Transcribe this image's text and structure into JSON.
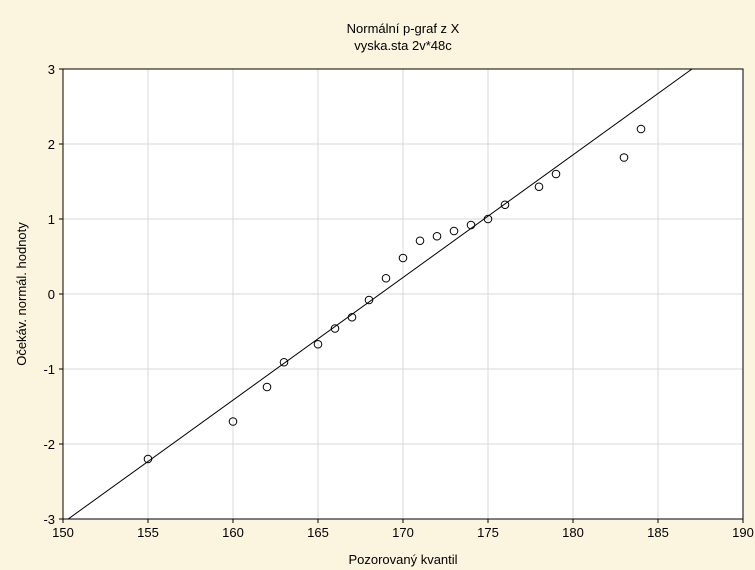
{
  "chart_data": {
    "type": "scatter",
    "title": "Normální p-graf z X",
    "subtitle": "vyska.sta 2v*48c",
    "xlabel": "Pozorovaný kvantil",
    "ylabel": "Očekáv. normál. hodnoty",
    "xlim": [
      150,
      190
    ],
    "ylim": [
      -3,
      3
    ],
    "xticks": [
      150,
      155,
      160,
      165,
      170,
      175,
      180,
      185,
      190
    ],
    "yticks": [
      -3,
      -2,
      -1,
      0,
      1,
      2,
      3
    ],
    "xtick_labels": [
      "150",
      "155",
      "160",
      "165",
      "170",
      "175",
      "180",
      "185",
      "190"
    ],
    "ytick_labels": [
      "-3",
      "-2",
      "-1",
      "0",
      "1",
      "2",
      "3"
    ],
    "grid": true,
    "points": [
      {
        "x": 155,
        "y": -2.2
      },
      {
        "x": 160,
        "y": -1.7
      },
      {
        "x": 162,
        "y": -1.24
      },
      {
        "x": 163,
        "y": -0.91
      },
      {
        "x": 165,
        "y": -0.67
      },
      {
        "x": 166,
        "y": -0.46
      },
      {
        "x": 167,
        "y": -0.31
      },
      {
        "x": 168,
        "y": -0.08
      },
      {
        "x": 169,
        "y": 0.21
      },
      {
        "x": 170,
        "y": 0.48
      },
      {
        "x": 171,
        "y": 0.71
      },
      {
        "x": 172,
        "y": 0.77
      },
      {
        "x": 173,
        "y": 0.84
      },
      {
        "x": 174,
        "y": 0.92
      },
      {
        "x": 175,
        "y": 1.0
      },
      {
        "x": 176,
        "y": 1.19
      },
      {
        "x": 178,
        "y": 1.43
      },
      {
        "x": 179,
        "y": 1.6
      },
      {
        "x": 183,
        "y": 1.82
      },
      {
        "x": 184,
        "y": 2.2
      }
    ],
    "fit_line": {
      "x": [
        150,
        187
      ],
      "y": [
        -3.05,
        3.0
      ]
    },
    "colors": {
      "background": "#fbf4df",
      "plot_background": "#ffffff",
      "grid": "#d9d9d9",
      "marks": "#000000"
    }
  }
}
